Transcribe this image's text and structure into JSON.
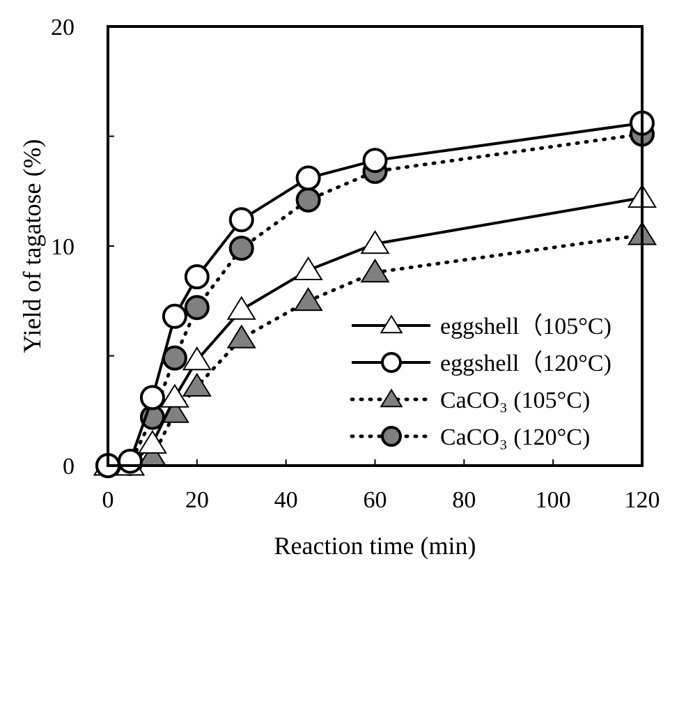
{
  "chart_data": {
    "type": "line",
    "title": "",
    "xlabel": "Reaction time (min)",
    "ylabel": "Yield of tagatose (%)",
    "xlim": [
      0,
      120
    ],
    "ylim": [
      0,
      20
    ],
    "x_ticks": [
      0,
      20,
      40,
      60,
      80,
      100,
      120
    ],
    "y_ticks": [
      0,
      10,
      20
    ],
    "y_minor_ticks": [
      5,
      15
    ],
    "grid": false,
    "legend_position": "center-right",
    "series": [
      {
        "name": "eggshell（105°C)",
        "marker": "triangle",
        "fill": "#ffffff",
        "line_style": "solid",
        "x": [
          0,
          5,
          10,
          15,
          20,
          30,
          45,
          60,
          120
        ],
        "y": [
          0,
          0,
          1.0,
          3.1,
          4.8,
          7.1,
          8.9,
          10.1,
          12.2
        ]
      },
      {
        "name": "eggshell（120°C)",
        "marker": "circle",
        "fill": "#ffffff",
        "line_style": "solid",
        "x": [
          0,
          5,
          10,
          15,
          20,
          30,
          45,
          60,
          120
        ],
        "y": [
          0,
          0.2,
          3.1,
          6.8,
          8.6,
          11.2,
          13.1,
          13.9,
          15.6
        ]
      },
      {
        "name": "CaCO₃ (105°C)",
        "marker": "triangle",
        "fill": "#808080",
        "line_style": "dotted",
        "x": [
          0,
          5,
          10,
          15,
          20,
          30,
          45,
          60,
          120
        ],
        "y": [
          0,
          0,
          0.4,
          2.4,
          3.6,
          5.8,
          7.5,
          8.8,
          10.5
        ]
      },
      {
        "name": "CaCO₃ (120°C)",
        "marker": "circle",
        "fill": "#808080",
        "line_style": "dotted",
        "x": [
          0,
          5,
          10,
          15,
          20,
          30,
          45,
          60,
          120
        ],
        "y": [
          0,
          0.1,
          2.2,
          4.9,
          7.2,
          9.9,
          12.1,
          13.4,
          15.1
        ]
      }
    ]
  }
}
